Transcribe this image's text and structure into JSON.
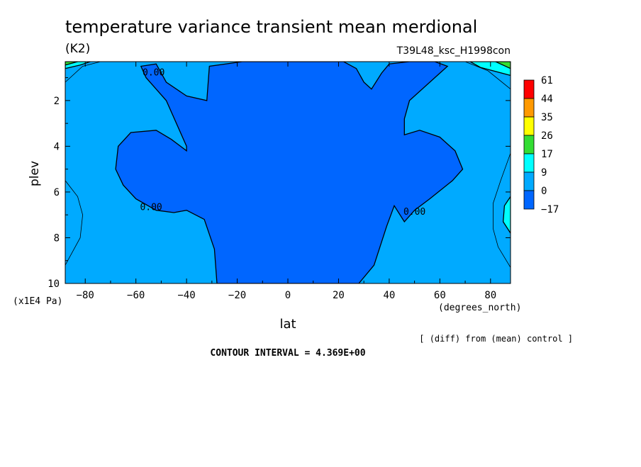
{
  "chart_data": {
    "type": "contour",
    "title": "temperature variance transient mean merdional",
    "units": "(K2)",
    "run_label": "T39L48_ksc_H1998con",
    "xlabel": "lat",
    "x_units": "(degrees_north)",
    "ylabel": "plev",
    "y_units": "(x1E4 Pa)",
    "x_ticks": [
      -80,
      -60,
      -40,
      -20,
      0,
      20,
      40,
      60,
      80
    ],
    "y_ticks": [
      2,
      4,
      6,
      8,
      10
    ],
    "xlim": [
      -87.9,
      87.9
    ],
    "ylim": [
      10,
      0.3
    ],
    "diff_note": "[ (diff) from (mean) control ]",
    "contour_interval_text": "CONTOUR INTERVAL = 4.369E+00",
    "contour_labels": [
      {
        "text": "0.00",
        "lat": -53,
        "plev": 0.9
      },
      {
        "text": "0.00",
        "lat": -54,
        "plev": 6.8
      },
      {
        "text": "0.00",
        "lat": 50,
        "plev": 7.0
      }
    ],
    "legend": {
      "levels": [
        "61",
        "44",
        "35",
        "26",
        "17",
        "9",
        "0",
        "-17"
      ],
      "colors": [
        "#ff0000",
        "#ff9900",
        "#ffff00",
        "#33dd33",
        "#00ffff",
        "#00aaff",
        "#0066ff"
      ]
    },
    "regions": [
      {
        "level": "0 to 9",
        "color": "#00aaff",
        "poly": [
          [
            -87.9,
            0.3
          ],
          [
            87.9,
            0.3
          ],
          [
            87.9,
            10
          ],
          [
            -87.9,
            10
          ]
        ]
      },
      {
        "level": "-17 to 0",
        "color": "#0066ff",
        "poly": [
          [
            -58,
            0.5
          ],
          [
            -52,
            0.4
          ],
          [
            -48,
            1.2
          ],
          [
            -40,
            1.8
          ],
          [
            -32,
            2.0
          ],
          [
            -31,
            0.5
          ],
          [
            -18,
            0.3
          ],
          [
            -5,
            0.3
          ],
          [
            10,
            0.3
          ],
          [
            22,
            0.3
          ],
          [
            27,
            0.6
          ],
          [
            30,
            1.2
          ],
          [
            33,
            1.5
          ],
          [
            37,
            0.8
          ],
          [
            40,
            0.4
          ],
          [
            48,
            0.3
          ],
          [
            58,
            0.3
          ],
          [
            63,
            0.5
          ],
          [
            58,
            1.0
          ],
          [
            48,
            2.0
          ],
          [
            46,
            2.8
          ],
          [
            46,
            3.5
          ],
          [
            52,
            3.3
          ],
          [
            60,
            3.6
          ],
          [
            66,
            4.2
          ],
          [
            69,
            5.0
          ],
          [
            65,
            5.5
          ],
          [
            56,
            6.3
          ],
          [
            50,
            6.8
          ],
          [
            46,
            7.3
          ],
          [
            42,
            6.6
          ],
          [
            39,
            7.5
          ],
          [
            34,
            9.2
          ],
          [
            28,
            10
          ],
          [
            -28,
            10
          ],
          [
            -29,
            8.5
          ],
          [
            -33,
            7.2
          ],
          [
            -40,
            6.8
          ],
          [
            -45,
            6.9
          ],
          [
            -52,
            6.8
          ],
          [
            -60,
            6.3
          ],
          [
            -65,
            5.7
          ],
          [
            -68,
            5.0
          ],
          [
            -67,
            4.0
          ],
          [
            -62,
            3.4
          ],
          [
            -52,
            3.3
          ],
          [
            -46,
            3.7
          ],
          [
            -40,
            4.2
          ],
          [
            -40,
            4.0
          ],
          [
            -48,
            2.0
          ],
          [
            -56,
            1.0
          ]
        ]
      },
      {
        "level": "9 to 17",
        "color": "#00ffff",
        "poly": [
          [
            -87.9,
            0.3
          ],
          [
            -78,
            0.3
          ],
          [
            -82,
            0.45
          ],
          [
            -87.9,
            0.6
          ]
        ]
      },
      {
        "level": "9 to 17",
        "color": "#00ffff",
        "poly": [
          [
            87.9,
            0.3
          ],
          [
            72,
            0.3
          ],
          [
            76,
            0.55
          ],
          [
            87.9,
            0.9
          ]
        ]
      },
      {
        "level": "17 to 26",
        "color": "#33dd33",
        "poly": [
          [
            -87.9,
            0.3
          ],
          [
            -83,
            0.3
          ],
          [
            -87.9,
            0.45
          ]
        ]
      },
      {
        "level": "17 to 26",
        "color": "#33dd33",
        "poly": [
          [
            87.9,
            0.3
          ],
          [
            82,
            0.3
          ],
          [
            87.9,
            0.6
          ]
        ]
      },
      {
        "level": "9 to 17",
        "color": "#00ffff",
        "poly": [
          [
            87.9,
            6.2
          ],
          [
            85.5,
            6.6
          ],
          [
            85,
            7.3
          ],
          [
            87.9,
            7.8
          ]
        ]
      }
    ],
    "contour_lines": [
      [
        [
          -87.9,
          5.5
        ],
        [
          -83,
          6.2
        ],
        [
          -81,
          7.0
        ],
        [
          -82,
          8.0
        ],
        [
          -87.9,
          9.2
        ]
      ],
      [
        [
          87.9,
          4.3
        ],
        [
          84,
          5.5
        ],
        [
          81,
          6.5
        ],
        [
          81,
          7.6
        ],
        [
          83,
          8.4
        ],
        [
          87.9,
          9.3
        ]
      ],
      [
        [
          -87.9,
          1.2
        ],
        [
          -81,
          0.5
        ],
        [
          -74,
          0.3
        ]
      ],
      [
        [
          87.9,
          1.5
        ],
        [
          79,
          0.7
        ],
        [
          70,
          0.3
        ]
      ]
    ]
  }
}
